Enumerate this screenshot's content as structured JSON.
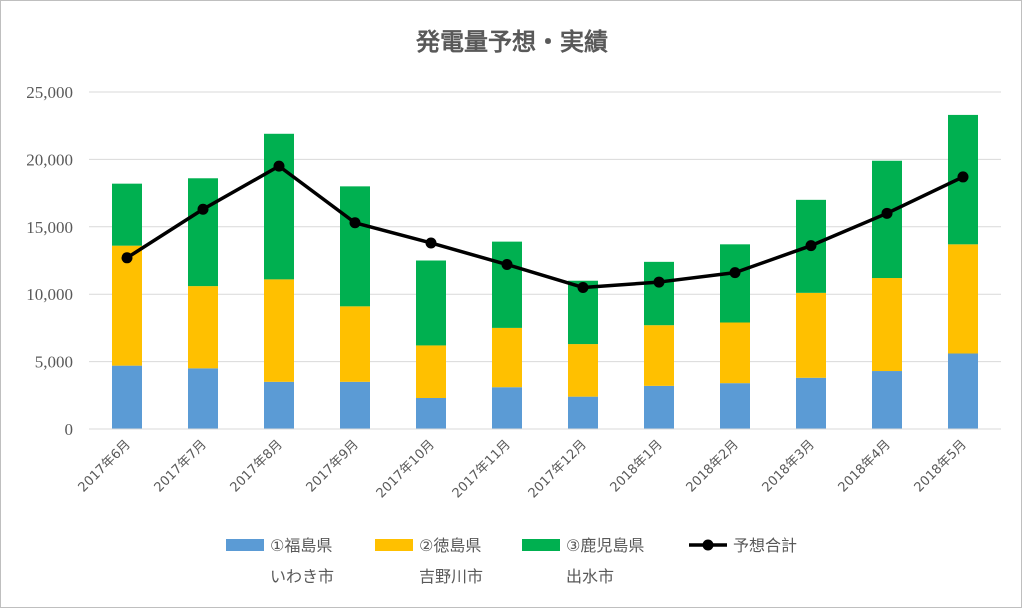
{
  "chart_data": {
    "type": "bar",
    "title": "発電量予想・実績",
    "xlabel": "",
    "ylabel": "",
    "ylim": [
      0,
      25000
    ],
    "yticks": [
      0,
      5000,
      10000,
      15000,
      20000,
      25000
    ],
    "ytick_labels": [
      "0",
      "5,000",
      "10,000",
      "15,000",
      "20,000",
      "25,000"
    ],
    "grid": true,
    "legend_position": "bottom",
    "stacked": true,
    "categories": [
      "2017年6月",
      "2017年7月",
      "2017年8月",
      "2017年9月",
      "2017年10月",
      "2017年11月",
      "2017年12月",
      "2018年1月",
      "2018年2月",
      "2018年3月",
      "2018年4月",
      "2018年5月"
    ],
    "series": [
      {
        "name": "①福島県",
        "sublabel": "いわき市",
        "kind": "bar",
        "color": "#5b9bd5",
        "values": [
          4700,
          4500,
          3500,
          3500,
          2300,
          3100,
          2400,
          3200,
          3400,
          3800,
          4300,
          5600
        ]
      },
      {
        "name": "②徳島県",
        "sublabel": "吉野川市",
        "kind": "bar",
        "color": "#ffc000",
        "values": [
          8900,
          6100,
          7600,
          5600,
          3900,
          4400,
          3900,
          4500,
          4500,
          6300,
          6900,
          8100
        ]
      },
      {
        "name": "③鹿児島県",
        "sublabel": "出水市",
        "kind": "bar",
        "color": "#00b050",
        "values": [
          4600,
          8000,
          10800,
          8900,
          6300,
          6400,
          4700,
          4700,
          5800,
          6900,
          8700,
          9600
        ]
      },
      {
        "name": "予想合計",
        "kind": "line",
        "color": "#000000",
        "values": [
          12700,
          16300,
          19500,
          15300,
          13800,
          12200,
          10500,
          10900,
          11600,
          13600,
          16000,
          18700
        ]
      }
    ]
  }
}
